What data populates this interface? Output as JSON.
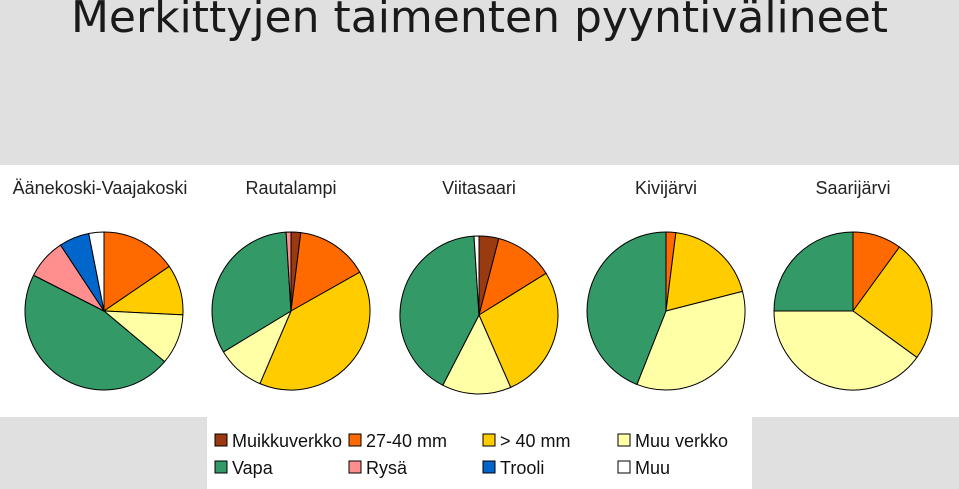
{
  "page": {
    "title": "Merkittyjen taimenten pyyntivälineet"
  },
  "colors": {
    "Muikkuverkko": "#9a3a10",
    "27-40 mm": "#ff6a00",
    "> 40 mm": "#ffcc00",
    "Muu verkko": "#ffffa6",
    "Vapa": "#339966",
    "Rysä": "#ff8f8f",
    "Trooli": "#0066cc",
    "Muu": "#ffffff"
  },
  "chart_data": {
    "type": "pie",
    "categories": [
      "Muikkuverkko",
      "27-40 mm",
      "> 40 mm",
      "Muu verkko",
      "Vapa",
      "Rysä",
      "Trooli",
      "Muu"
    ],
    "pies": [
      {
        "name": "Äänekoski-Vaajakoski",
        "values": [
          0,
          15,
          10,
          10,
          45,
          8,
          6,
          3
        ]
      },
      {
        "name": "Rautalampi",
        "values": [
          2,
          15,
          40,
          10,
          33,
          1,
          0,
          0
        ]
      },
      {
        "name": "Viitasaari",
        "values": [
          4,
          12,
          27,
          14,
          41,
          0,
          0,
          1
        ]
      },
      {
        "name": "Kivijärvi",
        "values": [
          0,
          2,
          19,
          35,
          44,
          0,
          0,
          0
        ]
      },
      {
        "name": "Saarijärvi",
        "values": [
          0,
          10,
          25,
          40,
          25,
          0,
          0,
          0
        ]
      }
    ]
  },
  "legend": {
    "items": [
      "Muikkuverkko",
      "27-40 mm",
      "> 40 mm",
      "Muu verkko",
      "Vapa",
      "Rysä",
      "Trooli",
      "Muu"
    ]
  }
}
